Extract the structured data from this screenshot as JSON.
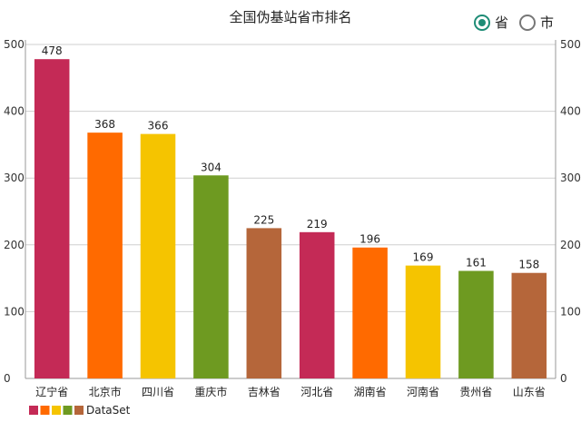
{
  "radios": [
    {
      "label": "省",
      "checked": true
    },
    {
      "label": "市",
      "checked": false
    }
  ],
  "chart_data": {
    "type": "bar",
    "title": "全国伪基站省市排名",
    "categories": [
      "辽宁省",
      "北京市",
      "四川省",
      "重庆市",
      "吉林省",
      "河北省",
      "湖南省",
      "河南省",
      "贵州省",
      "山东省"
    ],
    "values": [
      478,
      368,
      366,
      304,
      225,
      219,
      196,
      169,
      161,
      158
    ],
    "colors": [
      "#c42a56",
      "#ff6a00",
      "#f5c400",
      "#6e9a21",
      "#b5663a",
      "#c42a56",
      "#ff6a00",
      "#f5c400",
      "#6e9a21",
      "#b5663a"
    ],
    "ylim": [
      0,
      500
    ],
    "yticks": [
      0,
      100,
      200,
      300,
      400,
      500
    ],
    "legend": {
      "label": "DataSet",
      "colors": [
        "#c42a56",
        "#ff6a00",
        "#f5c400",
        "#6e9a21",
        "#b5663a"
      ]
    }
  }
}
